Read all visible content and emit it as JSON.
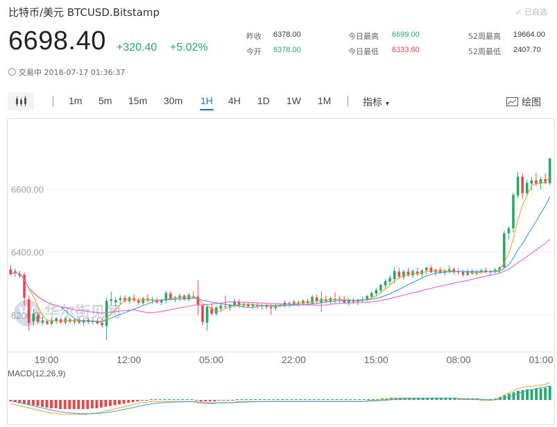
{
  "header": {
    "title": "比特币/美元  BTCUSD.Bitstamp",
    "favorite_label": "已自选",
    "price": "6698.40",
    "change": "+320.40",
    "change_pct": "+5.02%",
    "stats": [
      {
        "label": "昨收",
        "value": "6378.00",
        "color": "normal"
      },
      {
        "label": "今开",
        "value": "6378.00",
        "color": "green"
      },
      {
        "label": "今日最高",
        "value": "6699.00",
        "color": "green"
      },
      {
        "label": "今日最低",
        "value": "6333.60",
        "color": "red"
      },
      {
        "label": "52周最高",
        "value": "19664.00",
        "color": "normal"
      },
      {
        "label": "52周最低",
        "value": "2407.70",
        "color": "normal"
      }
    ],
    "status": "交易中 2018-07-17 01:36:37"
  },
  "toolbar": {
    "intervals": [
      "1m",
      "5m",
      "15m",
      "30m",
      "1H",
      "4H",
      "1D",
      "1W",
      "1M"
    ],
    "active_interval": "1H",
    "indicator_label": "指标",
    "draw_label": "绘图"
  },
  "watermark": "华尔街见闻",
  "chart_data": [
    {
      "type": "candlestick",
      "y_ticks": [
        "6600.00",
        "6400.00",
        "6200.00"
      ],
      "x_ticks": [
        "19:00",
        "12:00",
        "05:00",
        "22:00",
        "15:00",
        "08:00",
        "01:00"
      ],
      "ylim": [
        6120,
        6800
      ],
      "colors": {
        "up": "#2aa86a",
        "down": "#e8464a",
        "ma_short": "#f0a030",
        "ma_mid": "#3a9be0",
        "ma_long": "#e860d0"
      },
      "ohlc": [
        [
          6345,
          6358,
          6325,
          6330
        ],
        [
          6335,
          6348,
          6322,
          6340
        ],
        [
          6330,
          6340,
          6318,
          6325
        ],
        [
          6328,
          6335,
          6230,
          6255
        ],
        [
          6250,
          6262,
          6150,
          6175
        ],
        [
          6180,
          6220,
          6165,
          6205
        ],
        [
          6200,
          6210,
          6170,
          6178
        ],
        [
          6175,
          6195,
          6168,
          6183
        ],
        [
          6180,
          6186,
          6168,
          6172
        ],
        [
          6173,
          6190,
          6165,
          6182
        ],
        [
          6180,
          6195,
          6172,
          6189
        ],
        [
          6186,
          6192,
          6172,
          6176
        ],
        [
          6176,
          6194,
          6170,
          6188
        ],
        [
          6186,
          6192,
          6174,
          6179
        ],
        [
          6178,
          6190,
          6170,
          6185
        ],
        [
          6185,
          6192,
          6172,
          6176
        ],
        [
          6176,
          6190,
          6166,
          6184
        ],
        [
          6185,
          6192,
          6172,
          6178
        ],
        [
          6178,
          6188,
          6170,
          6182
        ],
        [
          6182,
          6190,
          6170,
          6173
        ],
        [
          6175,
          6190,
          6160,
          6168
        ],
        [
          6165,
          6255,
          6120,
          6245
        ],
        [
          6245,
          6275,
          6230,
          6250
        ],
        [
          6240,
          6258,
          6225,
          6248
        ],
        [
          6248,
          6262,
          6232,
          6254
        ],
        [
          6254,
          6262,
          6240,
          6244
        ],
        [
          6244,
          6260,
          6236,
          6256
        ],
        [
          6254,
          6266,
          6240,
          6246
        ],
        [
          6246,
          6254,
          6232,
          6240
        ],
        [
          6238,
          6258,
          6232,
          6253
        ],
        [
          6252,
          6266,
          6240,
          6246
        ],
        [
          6246,
          6258,
          6236,
          6250
        ],
        [
          6248,
          6254,
          6236,
          6240
        ],
        [
          6240,
          6252,
          6232,
          6248
        ],
        [
          6246,
          6278,
          6236,
          6270
        ],
        [
          6268,
          6276,
          6246,
          6252
        ],
        [
          6252,
          6262,
          6240,
          6256
        ],
        [
          6254,
          6268,
          6244,
          6262
        ],
        [
          6262,
          6266,
          6246,
          6250
        ],
        [
          6250,
          6270,
          6244,
          6264
        ],
        [
          6260,
          6275,
          6252,
          6256
        ],
        [
          6258,
          6310,
          6200,
          6232
        ],
        [
          6230,
          6238,
          6168,
          6178
        ],
        [
          6176,
          6232,
          6150,
          6226
        ],
        [
          6224,
          6238,
          6198,
          6204
        ],
        [
          6204,
          6230,
          6196,
          6224
        ],
        [
          6220,
          6238,
          6212,
          6230
        ],
        [
          6228,
          6262,
          6220,
          6226
        ],
        [
          6226,
          6236,
          6214,
          6232
        ],
        [
          6232,
          6252,
          6224,
          6244
        ],
        [
          6240,
          6250,
          6224,
          6230
        ],
        [
          6230,
          6240,
          6222,
          6236
        ],
        [
          6234,
          6240,
          6224,
          6228
        ],
        [
          6228,
          6238,
          6220,
          6234
        ],
        [
          6232,
          6238,
          6220,
          6228
        ],
        [
          6228,
          6236,
          6218,
          6232
        ],
        [
          6232,
          6238,
          6220,
          6226
        ],
        [
          6226,
          6234,
          6200,
          6222
        ],
        [
          6222,
          6236,
          6214,
          6230
        ],
        [
          6230,
          6236,
          6224,
          6232
        ],
        [
          6232,
          6246,
          6224,
          6240
        ],
        [
          6238,
          6244,
          6226,
          6234
        ],
        [
          6234,
          6248,
          6228,
          6242
        ],
        [
          6240,
          6246,
          6228,
          6236
        ],
        [
          6236,
          6250,
          6230,
          6246
        ],
        [
          6244,
          6252,
          6232,
          6238
        ],
        [
          6238,
          6264,
          6234,
          6258
        ],
        [
          6256,
          6266,
          6238,
          6244
        ],
        [
          6240,
          6276,
          6210,
          6252
        ],
        [
          6250,
          6262,
          6238,
          6244
        ],
        [
          6244,
          6258,
          6236,
          6254
        ],
        [
          6252,
          6272,
          6238,
          6248
        ],
        [
          6248,
          6262,
          6240,
          6252
        ],
        [
          6250,
          6260,
          6236,
          6240
        ],
        [
          6240,
          6254,
          6230,
          6248
        ],
        [
          6246,
          6254,
          6236,
          6242
        ],
        [
          6242,
          6252,
          6232,
          6248
        ],
        [
          6246,
          6258,
          6240,
          6250
        ],
        [
          6250,
          6264,
          6244,
          6260
        ],
        [
          6258,
          6276,
          6252,
          6270
        ],
        [
          6268,
          6286,
          6258,
          6280
        ],
        [
          6278,
          6300,
          6270,
          6296
        ],
        [
          6294,
          6315,
          6284,
          6308
        ],
        [
          6306,
          6328,
          6294,
          6318
        ],
        [
          6314,
          6352,
          6300,
          6340
        ],
        [
          6338,
          6350,
          6316,
          6322
        ],
        [
          6320,
          6345,
          6312,
          6338
        ],
        [
          6338,
          6350,
          6322,
          6326
        ],
        [
          6326,
          6346,
          6318,
          6340
        ],
        [
          6338,
          6350,
          6324,
          6330
        ],
        [
          6330,
          6346,
          6318,
          6342
        ],
        [
          6342,
          6354,
          6328,
          6350
        ],
        [
          6350,
          6358,
          6334,
          6336
        ],
        [
          6336,
          6348,
          6324,
          6344
        ],
        [
          6344,
          6352,
          6330,
          6334
        ],
        [
          6334,
          6346,
          6326,
          6340
        ],
        [
          6340,
          6356,
          6334,
          6346
        ],
        [
          6346,
          6352,
          6330,
          6336
        ],
        [
          6336,
          6350,
          6328,
          6338
        ],
        [
          6338,
          6344,
          6322,
          6328
        ],
        [
          6328,
          6346,
          6324,
          6340
        ],
        [
          6340,
          6346,
          6328,
          6332
        ],
        [
          6332,
          6344,
          6326,
          6338
        ],
        [
          6338,
          6348,
          6332,
          6342
        ],
        [
          6342,
          6350,
          6334,
          6336
        ],
        [
          6336,
          6344,
          6324,
          6340
        ],
        [
          6338,
          6350,
          6332,
          6344
        ],
        [
          6344,
          6355,
          6333,
          6352
        ],
        [
          6352,
          6468,
          6346,
          6460
        ],
        [
          6460,
          6482,
          6440,
          6476
        ],
        [
          6476,
          6590,
          6462,
          6582
        ],
        [
          6580,
          6655,
          6570,
          6640
        ],
        [
          6640,
          6650,
          6570,
          6588
        ],
        [
          6588,
          6630,
          6578,
          6620
        ],
        [
          6618,
          6638,
          6596,
          6628
        ],
        [
          6628,
          6652,
          6610,
          6618
        ],
        [
          6618,
          6640,
          6600,
          6632
        ],
        [
          6632,
          6650,
          6616,
          6620
        ],
        [
          6620,
          6700,
          6614,
          6698
        ]
      ]
    },
    {
      "type": "macd",
      "label": "MACD(12,26,9)",
      "colors": {
        "up": "#2aa86a",
        "down": "#e8464a",
        "dif": "#f0a030",
        "dea": "#3a9be0"
      },
      "histogram": [
        -2,
        -3,
        -4,
        -5,
        -6,
        -7,
        -8,
        -9,
        -10,
        -11,
        -11,
        -12,
        -12,
        -12,
        -12,
        -12,
        -12,
        -12,
        -11,
        -11,
        -10,
        -9,
        -8,
        -7,
        -6,
        -5,
        -4,
        -3,
        -2,
        -1,
        -1,
        0,
        0,
        0,
        0,
        0,
        0,
        0,
        0,
        0,
        0,
        -1,
        -2,
        -2,
        -2,
        -2,
        -1,
        -1,
        -1,
        -1,
        0,
        0,
        0,
        0,
        0,
        0,
        0,
        0,
        0,
        0,
        0,
        0,
        0,
        0,
        0,
        0,
        0,
        0,
        0,
        0,
        0,
        0,
        0,
        0,
        0,
        0,
        0,
        0,
        0,
        1,
        1,
        1,
        2,
        2,
        3,
        3,
        3,
        3,
        3,
        3,
        3,
        3,
        3,
        3,
        3,
        3,
        3,
        3,
        3,
        2,
        2,
        2,
        2,
        2,
        1,
        1,
        1,
        2,
        4,
        6,
        8,
        10,
        12,
        13,
        14,
        14,
        15,
        15,
        16,
        18
      ]
    }
  ]
}
